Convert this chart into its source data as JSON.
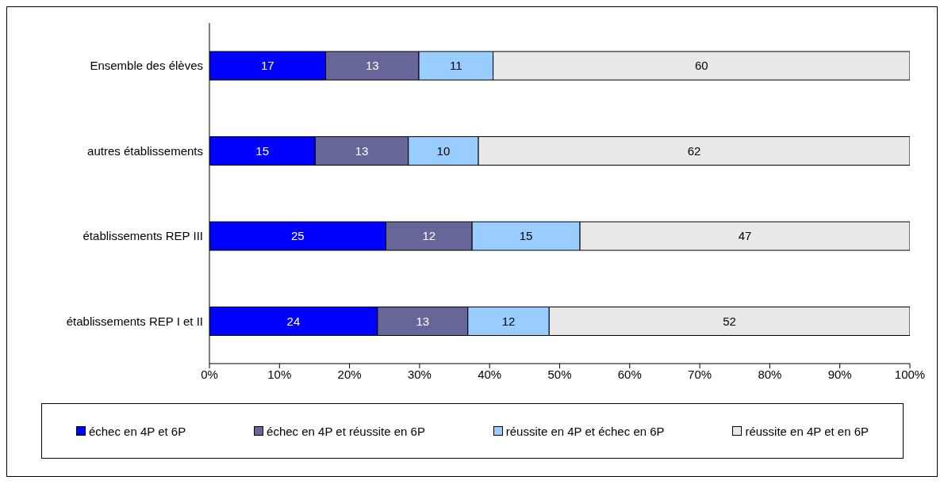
{
  "chart_data": {
    "type": "bar",
    "orientation": "horizontal",
    "stacked": true,
    "categories": [
      "Ensemble des élèves",
      "autres établissements",
      "établissements REP III",
      "établissements REP I et II"
    ],
    "series": [
      {
        "name": "échec en 4P et 6P",
        "color": "#0000ff",
        "values": [
          16.6,
          15.1,
          25.2,
          24.0
        ],
        "value_labels": [
          "17",
          "15",
          "25",
          "24"
        ]
      },
      {
        "name": "échec en 4P et réussite en 6P",
        "color": "#666699",
        "values": [
          13.3,
          13.3,
          12.3,
          12.9
        ],
        "value_labels": [
          "13",
          "13",
          "12",
          "13"
        ]
      },
      {
        "name": "réussite en 4P et échec en 6P",
        "color": "#99ccff",
        "values": [
          10.6,
          10.0,
          15.4,
          11.6
        ],
        "value_labels": [
          "11",
          "10",
          "15",
          "12"
        ]
      },
      {
        "name": "réussite en 4P et en 6P",
        "color": "#e8e8e8",
        "values": [
          59.5,
          61.6,
          47.1,
          51.5
        ],
        "value_labels": [
          "60",
          "62",
          "47",
          "52"
        ]
      }
    ],
    "xlim": [
      0,
      100
    ],
    "xticks": [
      {
        "value": 0,
        "label": "0%"
      },
      {
        "value": 10,
        "label": "10%"
      },
      {
        "value": 20,
        "label": "20%"
      },
      {
        "value": 30,
        "label": "30%"
      },
      {
        "value": 40,
        "label": "40%"
      },
      {
        "value": 50,
        "label": "50%"
      },
      {
        "value": 60,
        "label": "60%"
      },
      {
        "value": 70,
        "label": "70%"
      },
      {
        "value": 80,
        "label": "80%"
      },
      {
        "value": 90,
        "label": "90%"
      },
      {
        "value": 100,
        "label": "100%"
      }
    ],
    "grid": false,
    "legend": "bottom"
  }
}
